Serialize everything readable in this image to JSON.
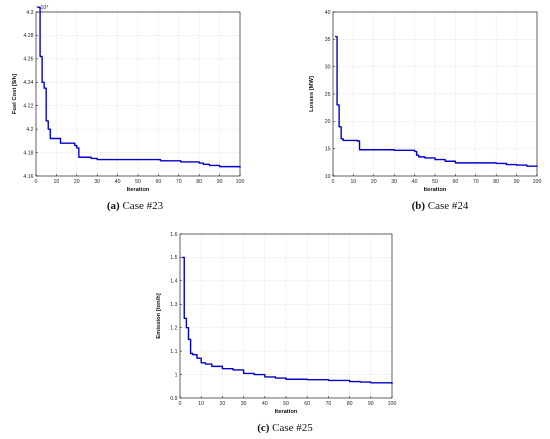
{
  "chart_data": [
    {
      "type": "line",
      "caption_letter": "(a)",
      "caption_text": "Case #23",
      "xlabel": "Iteration",
      "ylabel": "Fuel Cost [$/h]",
      "exponent_label": "× 10⁴",
      "xlim": [
        0,
        100
      ],
      "ylim": [
        4.16,
        4.3
      ],
      "xticks": [
        0,
        10,
        20,
        30,
        40,
        50,
        60,
        70,
        80,
        90,
        100
      ],
      "yticks": [
        4.16,
        4.18,
        4.2,
        4.22,
        4.24,
        4.26,
        4.28,
        4.3
      ],
      "ytick_labels": [
        "4.16",
        "4.18",
        "4.2",
        "4.22",
        "4.24",
        "4.26",
        "4.28",
        "4.3"
      ],
      "grid": true,
      "series": [
        {
          "color": "#0000cc",
          "x": [
            1,
            2,
            3,
            4,
            5,
            6,
            7,
            8,
            9,
            10,
            11,
            12,
            13,
            14,
            15,
            16,
            17,
            18,
            19,
            20,
            21,
            22,
            23,
            24,
            25,
            26,
            27,
            28,
            29,
            30,
            32,
            40,
            50,
            60,
            61,
            70,
            71,
            75,
            78,
            80,
            82,
            85,
            90,
            95,
            100
          ],
          "y": [
            4.304,
            4.262,
            4.24,
            4.235,
            4.207,
            4.2,
            4.192,
            4.192,
            4.192,
            4.192,
            4.192,
            4.188,
            4.188,
            4.188,
            4.188,
            4.188,
            4.188,
            4.188,
            4.186,
            4.184,
            4.176,
            4.176,
            4.176,
            4.176,
            4.176,
            4.176,
            4.175,
            4.175,
            4.175,
            4.174,
            4.174,
            4.174,
            4.174,
            4.174,
            4.173,
            4.173,
            4.172,
            4.172,
            4.172,
            4.171,
            4.17,
            4.169,
            4.168,
            4.168,
            4.167
          ]
        }
      ]
    },
    {
      "type": "line",
      "caption_letter": "(b)",
      "caption_text": "Case #24",
      "xlabel": "Iteration",
      "ylabel": "Losses [MW]",
      "xlim": [
        0,
        100
      ],
      "ylim": [
        10,
        40
      ],
      "xticks": [
        0,
        10,
        20,
        30,
        40,
        50,
        60,
        70,
        80,
        90,
        100
      ],
      "yticks": [
        10,
        15,
        20,
        25,
        30,
        35,
        40
      ],
      "ytick_labels": [
        "10",
        "15",
        "20",
        "25",
        "30",
        "35",
        "40"
      ],
      "grid": true,
      "series": [
        {
          "color": "#0000cc",
          "x": [
            1,
            2,
            3,
            4,
            5,
            6,
            7,
            8,
            9,
            10,
            11,
            12,
            13,
            14,
            20,
            30,
            40,
            41,
            42,
            45,
            50,
            55,
            60,
            70,
            80,
            85,
            90,
            95,
            100
          ],
          "y": [
            35.5,
            23,
            19,
            16.8,
            16.5,
            16.5,
            16.5,
            16.5,
            16.5,
            16.5,
            16.5,
            16.4,
            14.8,
            14.8,
            14.8,
            14.7,
            14.5,
            13.8,
            13.5,
            13.3,
            13.0,
            12.7,
            12.4,
            12.4,
            12.3,
            12.1,
            12.0,
            11.8,
            11.7
          ]
        }
      ]
    },
    {
      "type": "line",
      "caption_letter": "(c)",
      "caption_text": "Case #25",
      "xlabel": "Iteration",
      "ylabel": "Emission [ton/h]",
      "xlim": [
        0,
        100
      ],
      "ylim": [
        0.9,
        1.6
      ],
      "xticks": [
        0,
        10,
        20,
        30,
        40,
        50,
        60,
        70,
        80,
        90,
        100
      ],
      "yticks": [
        0.9,
        1,
        1.1,
        1.2,
        1.3,
        1.4,
        1.5,
        1.6
      ],
      "ytick_labels": [
        "0.9",
        "1",
        "1.1",
        "1.2",
        "1.3",
        "1.4",
        "1.5",
        "1.6"
      ],
      "grid": true,
      "series": [
        {
          "color": "#0000cc",
          "x": [
            1,
            2,
            3,
            4,
            5,
            6,
            7,
            8,
            9,
            10,
            12,
            15,
            20,
            25,
            30,
            35,
            40,
            45,
            50,
            60,
            70,
            80,
            85,
            90,
            100
          ],
          "y": [
            1.5,
            1.24,
            1.2,
            1.15,
            1.09,
            1.085,
            1.085,
            1.07,
            1.07,
            1.05,
            1.045,
            1.035,
            1.025,
            1.02,
            1.005,
            1.0,
            0.99,
            0.985,
            0.98,
            0.978,
            0.975,
            0.97,
            0.968,
            0.965,
            0.96
          ]
        }
      ]
    }
  ]
}
